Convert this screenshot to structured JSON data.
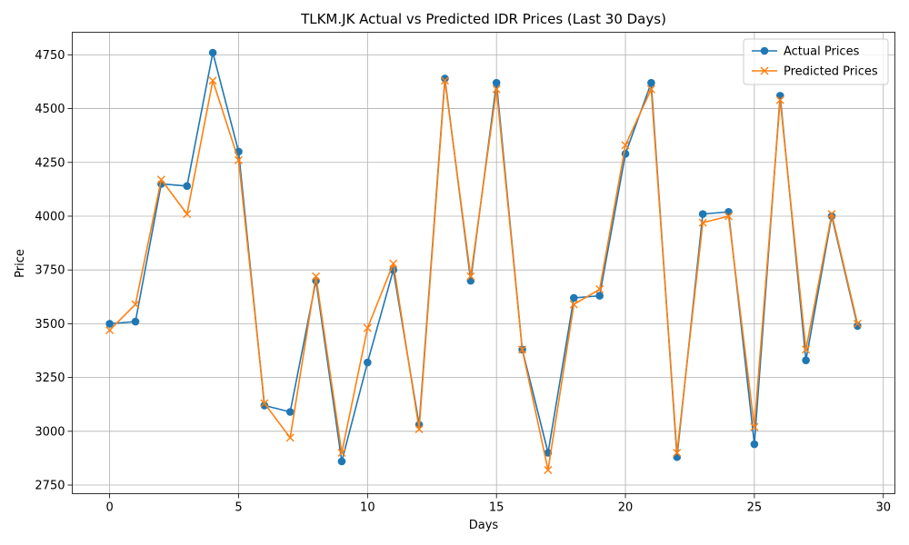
{
  "chart_data": {
    "type": "line",
    "title": "TLKM.JK Actual vs Predicted IDR Prices (Last 30 Days)",
    "xlabel": "Days",
    "ylabel": "Price",
    "xlim": [
      -1.45,
      30.45
    ],
    "ylim": [
      2710,
      4855
    ],
    "xticks": [
      0,
      5,
      10,
      15,
      20,
      25,
      30
    ],
    "yticks": [
      2750,
      3000,
      3250,
      3500,
      3750,
      4000,
      4250,
      4500,
      4750
    ],
    "grid": true,
    "legend_position": "top-right",
    "x": [
      0,
      1,
      2,
      3,
      4,
      5,
      6,
      7,
      8,
      9,
      10,
      11,
      12,
      13,
      14,
      15,
      16,
      17,
      18,
      19,
      20,
      21,
      22,
      23,
      24,
      25,
      26,
      27,
      28,
      29
    ],
    "series": [
      {
        "name": "Actual Prices",
        "color": "#1f77b4",
        "marker": "circle",
        "values": [
          3500,
          3510,
          4150,
          4140,
          4760,
          4300,
          3120,
          3090,
          3700,
          2860,
          3320,
          3750,
          3030,
          4640,
          3700,
          4620,
          3380,
          2900,
          3620,
          3630,
          4290,
          4620,
          2880,
          4010,
          4020,
          2940,
          4560,
          3330,
          4000,
          3490
        ]
      },
      {
        "name": "Predicted Prices",
        "color": "#ff7f0e",
        "marker": "x",
        "values": [
          3470,
          3590,
          4170,
          4010,
          4630,
          4260,
          3130,
          2970,
          3720,
          2900,
          3480,
          3780,
          3010,
          4630,
          3720,
          4590,
          3380,
          2820,
          3590,
          3660,
          4330,
          4590,
          2900,
          3970,
          4000,
          3020,
          4540,
          3380,
          4010,
          3500
        ]
      }
    ]
  }
}
